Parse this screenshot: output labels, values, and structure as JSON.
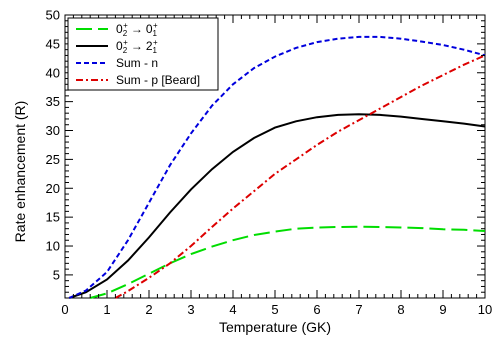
{
  "chart_data": {
    "type": "line",
    "xlabel": "Temperature (GK)",
    "ylabel": "Rate enhancement (R)",
    "xlim": [
      0,
      10
    ],
    "ylim": [
      1,
      50
    ],
    "x_ticks": [
      0,
      1,
      2,
      3,
      4,
      5,
      6,
      7,
      8,
      9,
      10
    ],
    "y_ticks": [
      5,
      10,
      15,
      20,
      25,
      30,
      35,
      40,
      45,
      50
    ],
    "grid": false,
    "legend_position": "top-left",
    "series": [
      {
        "name_main": "0",
        "name_sub1": "2",
        "name_sup1": "+",
        "name_arrow": "→",
        "name_target": "0",
        "name_sub2": "1",
        "name_sup2": "+",
        "color": "#00dd00",
        "dash": "long-dash",
        "x": [
          0.6,
          1.0,
          1.5,
          2.0,
          2.5,
          3.0,
          3.5,
          4.0,
          4.5,
          5.0,
          5.5,
          6.0,
          6.5,
          7.0,
          7.5,
          8.0,
          8.5,
          9.0,
          9.5,
          10.0
        ],
        "y": [
          1.0,
          1.8,
          3.4,
          5.2,
          7.0,
          8.6,
          9.9,
          11.0,
          11.9,
          12.5,
          13.0,
          13.2,
          13.3,
          13.35,
          13.3,
          13.2,
          13.1,
          12.9,
          12.8,
          12.6
        ]
      },
      {
        "name_main": "0",
        "name_sub1": "2",
        "name_sup1": "+",
        "name_arrow": "→",
        "name_target": "2",
        "name_sub2": "1",
        "name_sup2": "+",
        "color": "#000000",
        "dash": "solid",
        "x": [
          0.1,
          0.5,
          1.0,
          1.5,
          2.0,
          2.5,
          3.0,
          3.5,
          4.0,
          4.5,
          5.0,
          5.5,
          6.0,
          6.5,
          7.0,
          7.5,
          8.0,
          8.5,
          9.0,
          9.5,
          10.0
        ],
        "y": [
          1.0,
          2.0,
          4.2,
          7.5,
          11.5,
          15.8,
          19.8,
          23.3,
          26.3,
          28.7,
          30.5,
          31.6,
          32.3,
          32.7,
          32.8,
          32.7,
          32.4,
          32.0,
          31.6,
          31.2,
          30.7
        ]
      },
      {
        "name": "Sum - n",
        "color": "#0000dd",
        "dash": "short-dash",
        "x": [
          0.1,
          0.5,
          1.0,
          1.5,
          2.0,
          2.5,
          3.0,
          3.5,
          4.0,
          4.5,
          5.0,
          5.5,
          6.0,
          6.5,
          7.0,
          7.5,
          8.0,
          8.5,
          9.0,
          9.5,
          10.0
        ],
        "y": [
          1.0,
          2.3,
          5.5,
          11.0,
          17.5,
          24.0,
          29.5,
          34.3,
          38.0,
          40.8,
          42.8,
          44.3,
          45.3,
          45.9,
          46.2,
          46.2,
          45.9,
          45.4,
          44.8,
          44.0,
          43.0
        ]
      },
      {
        "name": "Sum - p [Beard]",
        "color": "#dd0000",
        "dash": "dash-dot",
        "x": [
          1.2,
          1.5,
          2.0,
          2.5,
          3.0,
          3.5,
          4.0,
          4.5,
          5.0,
          5.5,
          6.0,
          6.5,
          7.0,
          7.5,
          8.0,
          8.5,
          9.0,
          9.5,
          10.0
        ],
        "y": [
          1.0,
          2.2,
          4.5,
          7.0,
          10.0,
          13.3,
          16.5,
          19.5,
          22.5,
          25.0,
          27.5,
          29.8,
          31.8,
          33.8,
          35.8,
          37.8,
          39.6,
          41.4,
          43.0
        ]
      }
    ]
  }
}
